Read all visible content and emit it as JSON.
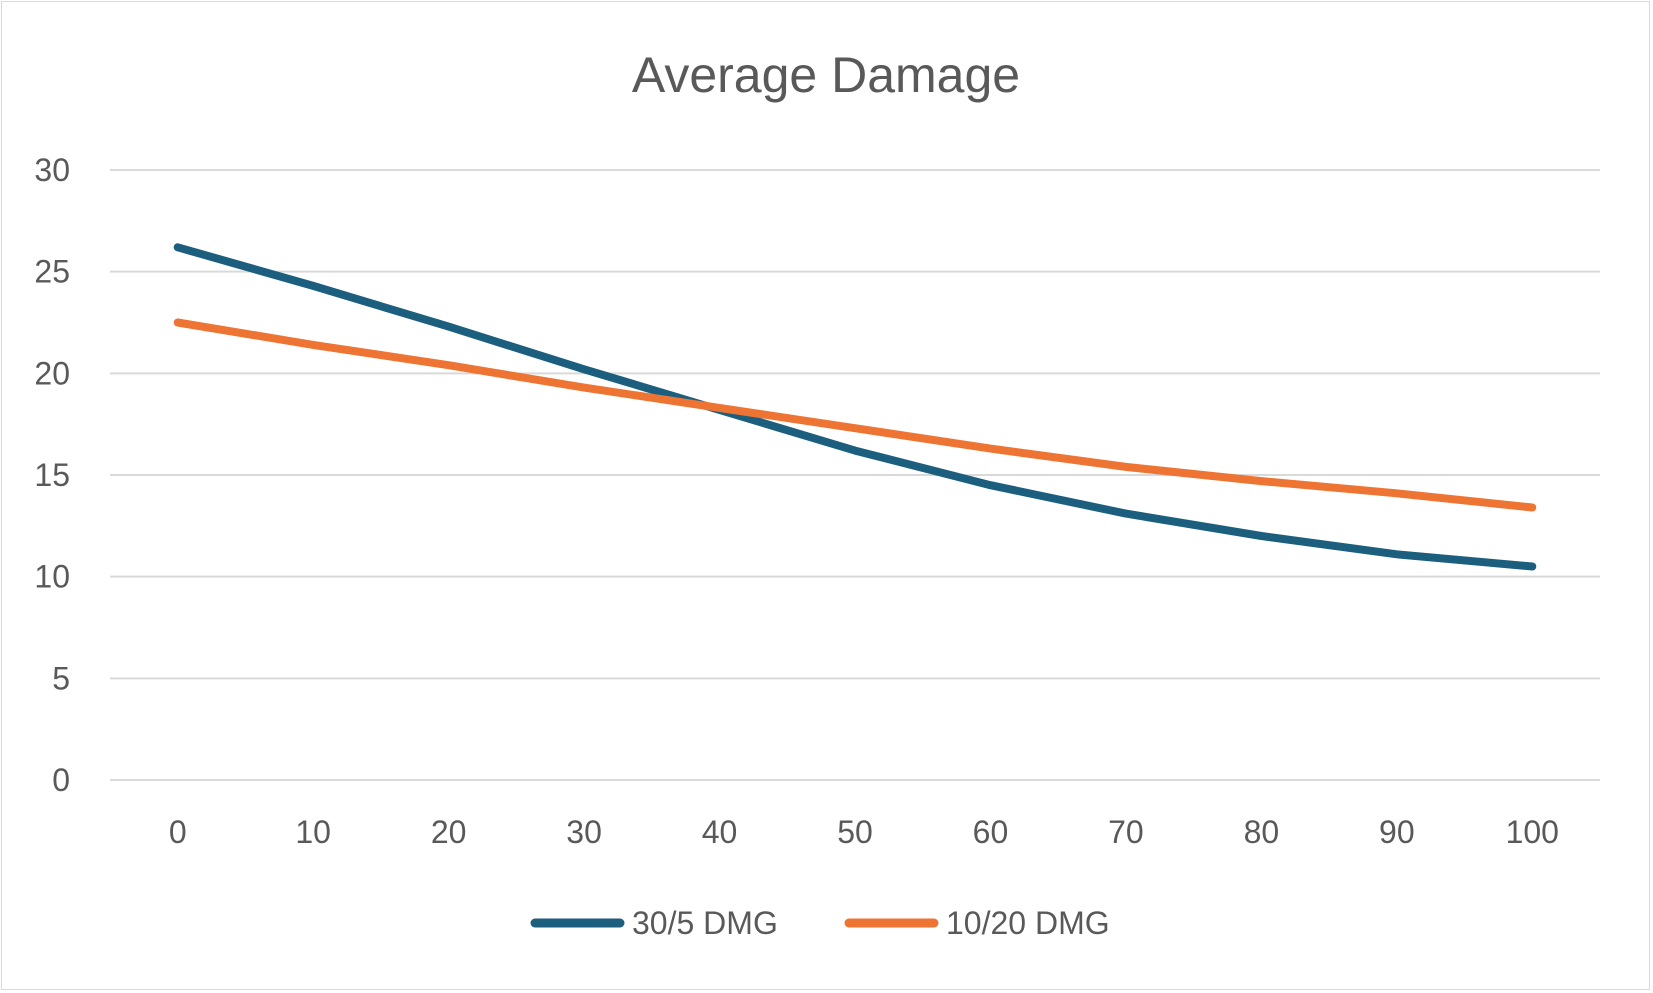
{
  "chart_data": {
    "type": "line",
    "title": "Average Damage",
    "xlabel": "",
    "ylabel": "",
    "categories": [
      0,
      10,
      20,
      30,
      40,
      50,
      60,
      70,
      80,
      90,
      100
    ],
    "ylim": [
      0,
      30
    ],
    "yticks": [
      0,
      5,
      10,
      15,
      20,
      25,
      30
    ],
    "grid": true,
    "legend_position": "bottom",
    "series": [
      {
        "name": "30/5 DMG",
        "color": "#1b5e7e",
        "values": [
          26.2,
          24.3,
          22.3,
          20.2,
          18.2,
          16.2,
          14.5,
          13.1,
          12.0,
          11.1,
          10.5
        ]
      },
      {
        "name": "10/20 DMG",
        "color": "#ee7434",
        "values": [
          22.5,
          21.4,
          20.4,
          19.3,
          18.3,
          17.3,
          16.3,
          15.4,
          14.7,
          14.1,
          13.4
        ]
      }
    ]
  }
}
